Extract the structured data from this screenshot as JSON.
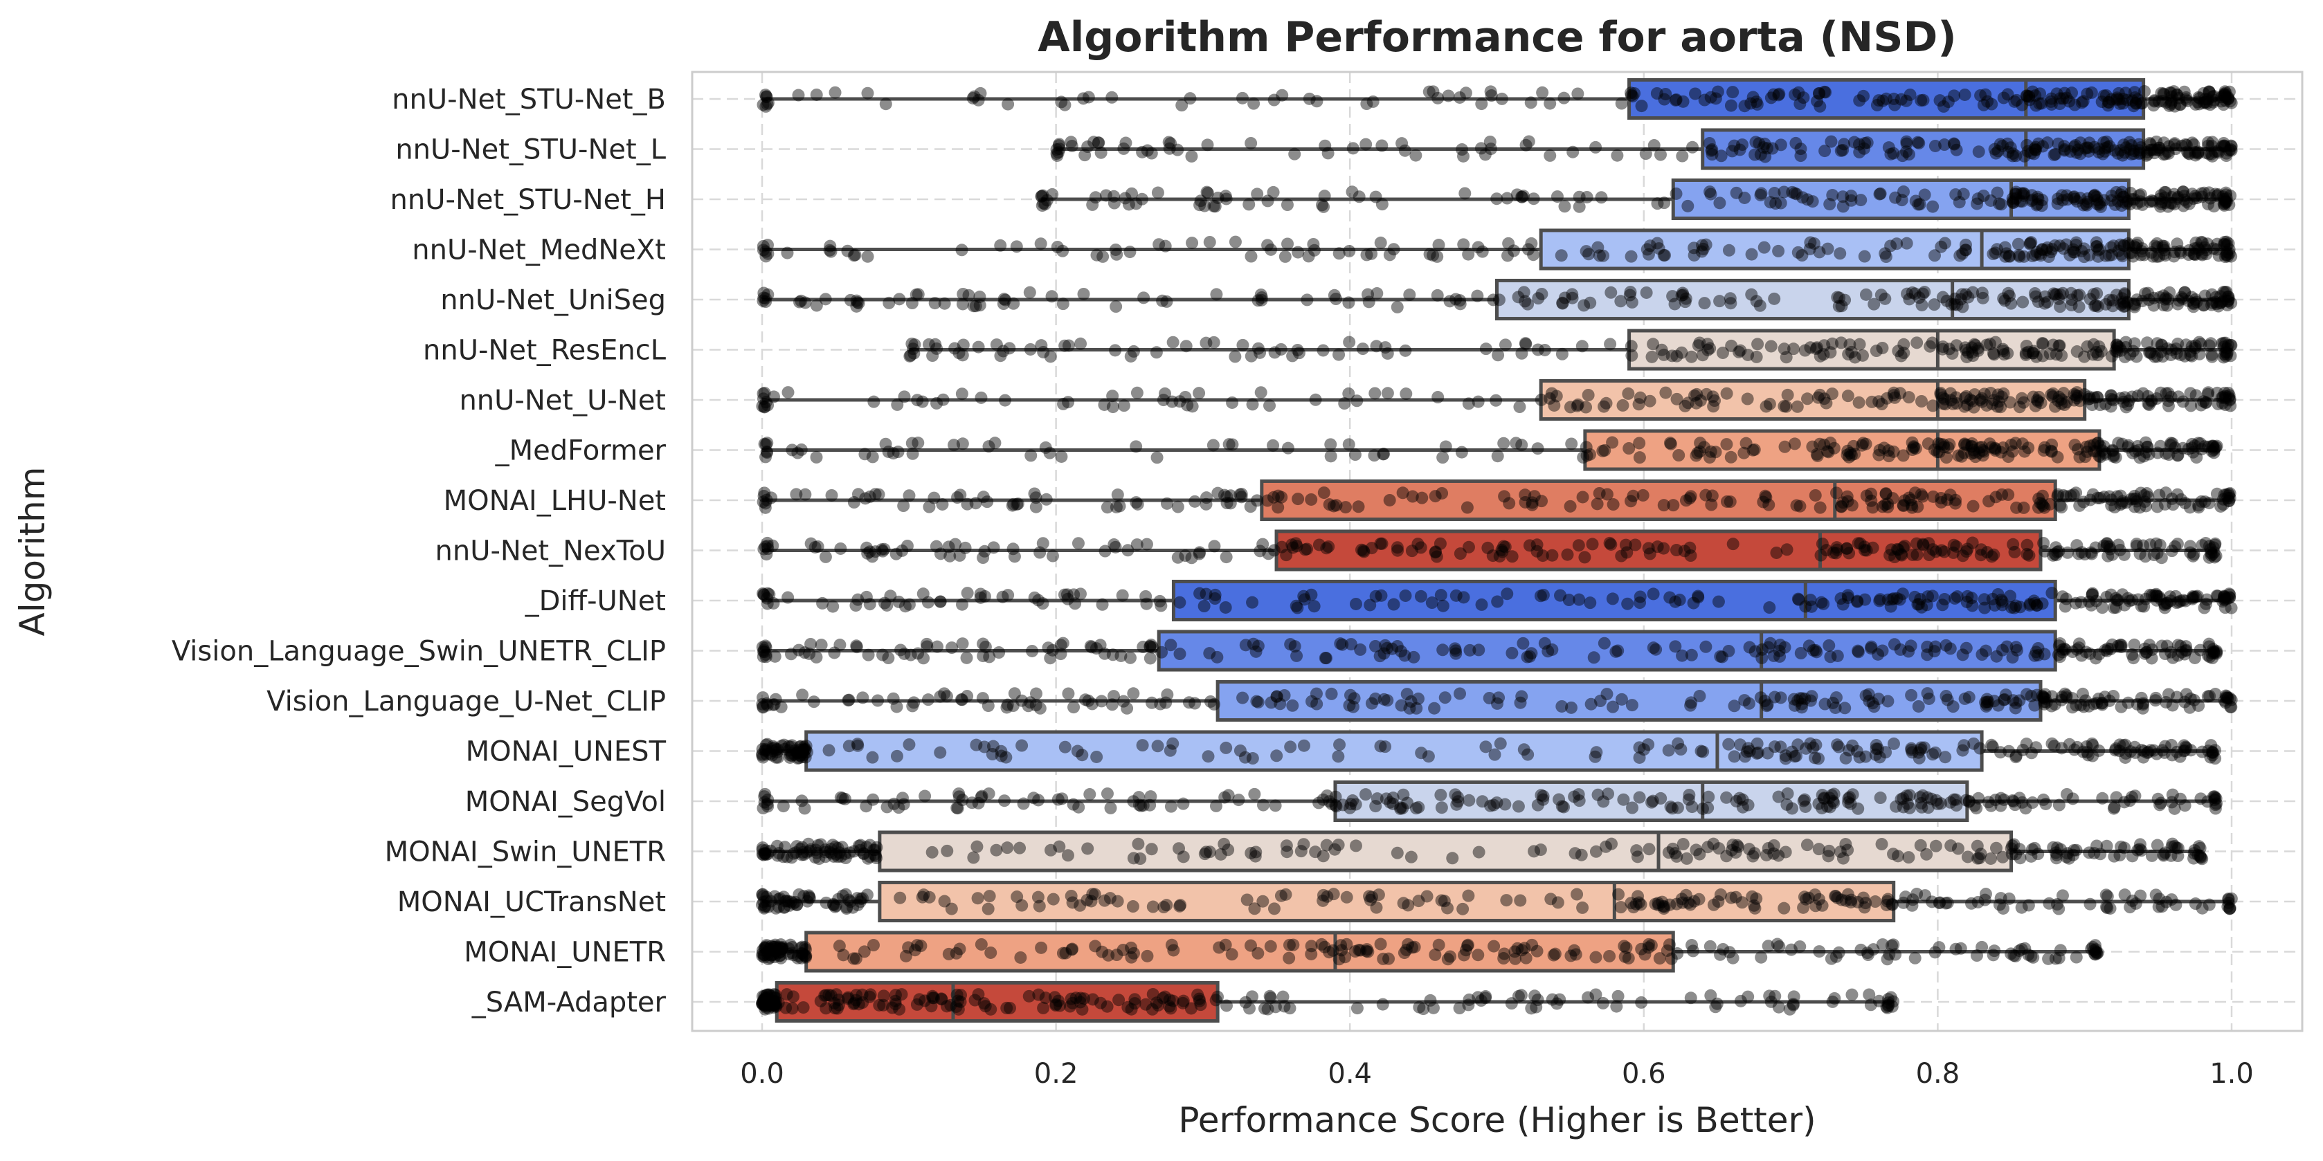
{
  "chart_data": {
    "type": "box",
    "orientation": "horizontal",
    "title": "Algorithm Performance for aorta (NSD)",
    "xlabel": "Performance Score (Higher is Better)",
    "ylabel": "Algorithm",
    "xlim": [
      -0.05,
      1.03
    ],
    "xticks": [
      0.0,
      0.2,
      0.4,
      0.6,
      0.8,
      1.0
    ],
    "xtick_labels": [
      "0.0",
      "0.2",
      "0.4",
      "0.6",
      "0.8",
      "1.0"
    ],
    "grid": true,
    "overlay": "jittered strip points",
    "categories": [
      "nnU-Net_STU-Net_B",
      "nnU-Net_STU-Net_L",
      "nnU-Net_STU-Net_H",
      "nnU-Net_MedNeXt",
      "nnU-Net_UniSeg",
      "nnU-Net_ResEncL",
      "nnU-Net_U-Net",
      "_MedFormer",
      "MONAI_LHU-Net",
      "nnU-Net_NexToU",
      "_Diff-UNet",
      "Vision_Language_Swin_UNETR_CLIP",
      "Vision_Language_U-Net_CLIP",
      "MONAI_UNEST",
      "MONAI_SegVol",
      "MONAI_Swin_UNETR",
      "MONAI_UCTransNet",
      "MONAI_UNETR",
      "_SAM-Adapter"
    ],
    "boxes": [
      {
        "whislo": 0.0,
        "q1": 0.59,
        "med": 0.86,
        "q3": 0.94,
        "whishi": 1.0,
        "color": "#4a6fdf"
      },
      {
        "whislo": 0.2,
        "q1": 0.64,
        "med": 0.86,
        "q3": 0.94,
        "whishi": 1.0,
        "color": "#6688e8"
      },
      {
        "whislo": 0.19,
        "q1": 0.62,
        "med": 0.85,
        "q3": 0.93,
        "whishi": 1.0,
        "color": "#85a3f0"
      },
      {
        "whislo": 0.0,
        "q1": 0.53,
        "med": 0.83,
        "q3": 0.93,
        "whishi": 1.0,
        "color": "#a9c0f5"
      },
      {
        "whislo": 0.0,
        "q1": 0.5,
        "med": 0.81,
        "q3": 0.93,
        "whishi": 1.0,
        "color": "#c9d4ec"
      },
      {
        "whislo": 0.1,
        "q1": 0.59,
        "med": 0.8,
        "q3": 0.92,
        "whishi": 1.0,
        "color": "#e6d9d1"
      },
      {
        "whislo": 0.0,
        "q1": 0.53,
        "med": 0.8,
        "q3": 0.9,
        "whishi": 1.0,
        "color": "#f2c3aa"
      },
      {
        "whislo": 0.0,
        "q1": 0.56,
        "med": 0.8,
        "q3": 0.91,
        "whishi": 0.99,
        "color": "#eea283"
      },
      {
        "whislo": 0.0,
        "q1": 0.34,
        "med": 0.73,
        "q3": 0.88,
        "whishi": 1.0,
        "color": "#df7d62"
      },
      {
        "whislo": 0.0,
        "q1": 0.35,
        "med": 0.72,
        "q3": 0.87,
        "whishi": 0.99,
        "color": "#c5493b"
      },
      {
        "whislo": 0.0,
        "q1": 0.28,
        "med": 0.71,
        "q3": 0.88,
        "whishi": 1.0,
        "color": "#4a6fdf"
      },
      {
        "whislo": 0.0,
        "q1": 0.27,
        "med": 0.68,
        "q3": 0.88,
        "whishi": 0.99,
        "color": "#6688e8"
      },
      {
        "whislo": 0.0,
        "q1": 0.31,
        "med": 0.68,
        "q3": 0.87,
        "whishi": 1.0,
        "color": "#85a3f0"
      },
      {
        "whislo": 0.0,
        "q1": 0.03,
        "med": 0.65,
        "q3": 0.83,
        "whishi": 0.99,
        "color": "#a9c0f5"
      },
      {
        "whislo": 0.0,
        "q1": 0.39,
        "med": 0.64,
        "q3": 0.82,
        "whishi": 0.99,
        "color": "#c9d4ec"
      },
      {
        "whislo": 0.0,
        "q1": 0.08,
        "med": 0.61,
        "q3": 0.85,
        "whishi": 0.98,
        "color": "#e6d9d1"
      },
      {
        "whislo": 0.0,
        "q1": 0.08,
        "med": 0.58,
        "q3": 0.77,
        "whishi": 1.0,
        "color": "#f2c3aa"
      },
      {
        "whislo": 0.0,
        "q1": 0.03,
        "med": 0.39,
        "q3": 0.62,
        "whishi": 0.91,
        "color": "#eea283"
      },
      {
        "whislo": 0.0,
        "q1": 0.01,
        "med": 0.13,
        "q3": 0.31,
        "whishi": 0.77,
        "color": "#c5493b"
      }
    ]
  }
}
